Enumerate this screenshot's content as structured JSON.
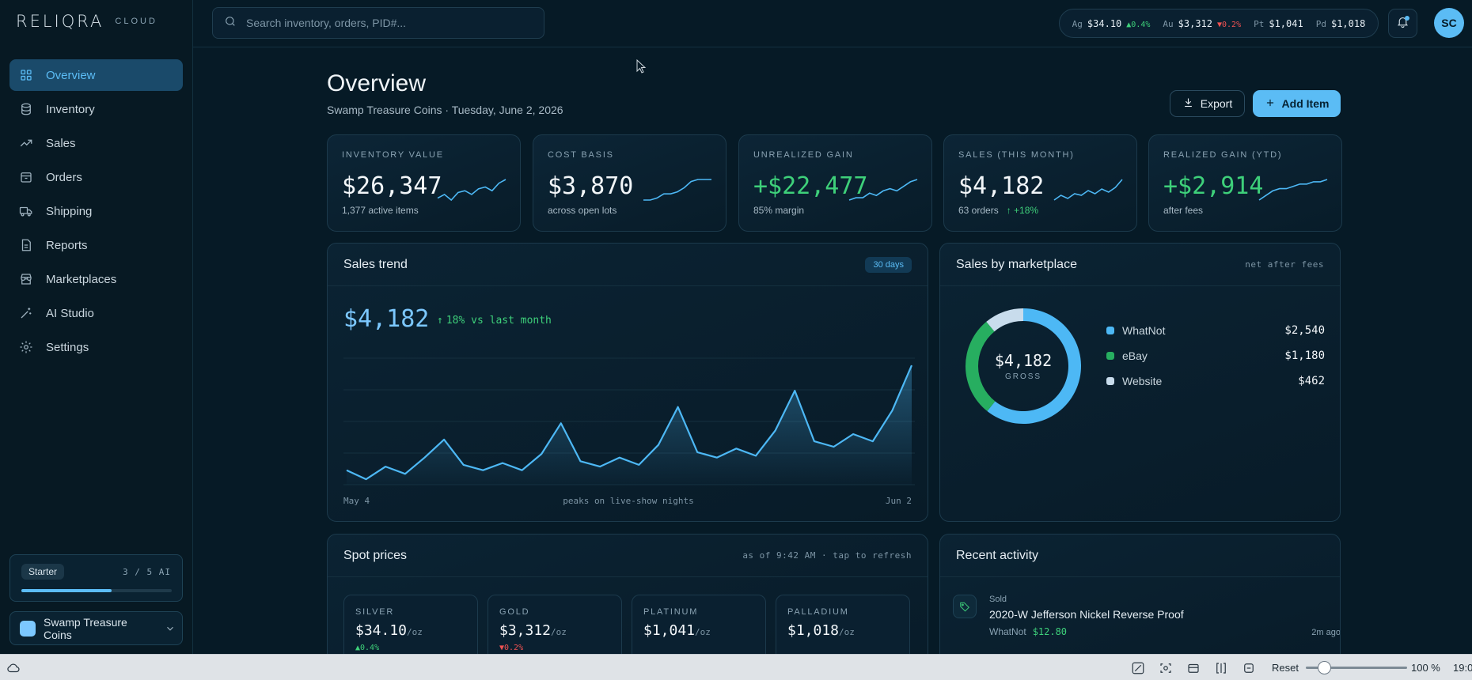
{
  "brand": {
    "logo": "RELIQRA",
    "sub": "CLOUD"
  },
  "sidebar": {
    "items": [
      {
        "label": "Overview",
        "icon": "grid-icon",
        "active": true
      },
      {
        "label": "Inventory",
        "icon": "database-icon"
      },
      {
        "label": "Sales",
        "icon": "trending-up-icon"
      },
      {
        "label": "Orders",
        "icon": "box-icon"
      },
      {
        "label": "Shipping",
        "icon": "truck-icon"
      },
      {
        "label": "Reports",
        "icon": "report-icon"
      },
      {
        "label": "Marketplaces",
        "icon": "store-icon"
      },
      {
        "label": "AI Studio",
        "icon": "wand-icon"
      },
      {
        "label": "Settings",
        "icon": "gear-icon"
      }
    ],
    "plan": {
      "name": "Starter",
      "usage": "3 / 5 AI",
      "progress": 0.6
    },
    "workspace": "Swamp Treasure Coins"
  },
  "topbar": {
    "search_placeholder": "Search inventory, orders, PID#...",
    "ticker": [
      {
        "sym": "Ag",
        "price": "$34.10",
        "change": "▲0.4%",
        "dir": "up"
      },
      {
        "sym": "Au",
        "price": "$3,312",
        "change": "▼0.2%",
        "dir": "down"
      },
      {
        "sym": "Pt",
        "price": "$1,041",
        "change": "",
        "dir": ""
      },
      {
        "sym": "Pd",
        "price": "$1,018",
        "change": "",
        "dir": ""
      }
    ],
    "avatar": "SC"
  },
  "header": {
    "title": "Overview",
    "subtitle": "Swamp Treasure Coins · Tuesday, June 2, 2026",
    "export_label": "Export",
    "add_label": "Add Item"
  },
  "kpis": [
    {
      "label": "INVENTORY VALUE",
      "value": "$26,347",
      "foot": "1,377 active items",
      "delta": "",
      "green": false,
      "spark": [
        10,
        12,
        9,
        13,
        14,
        12,
        15,
        16,
        14,
        18,
        20
      ]
    },
    {
      "label": "COST BASIS",
      "value": "$3,870",
      "foot": "across open lots",
      "delta": "",
      "green": false,
      "spark": [
        8,
        8,
        9,
        11,
        11,
        12,
        14,
        17,
        18,
        18,
        18
      ]
    },
    {
      "label": "UNREALIZED GAIN",
      "value": "+$22,477",
      "foot": "85% margin",
      "delta": "",
      "green": true,
      "spark": [
        9,
        10,
        10,
        12,
        11,
        13,
        14,
        13,
        15,
        17,
        18
      ]
    },
    {
      "label": "SALES (THIS MONTH)",
      "value": "$4,182",
      "foot": "63 orders",
      "delta": "+18%",
      "green": false,
      "spark": [
        9,
        12,
        10,
        13,
        12,
        15,
        13,
        16,
        14,
        17,
        22
      ]
    },
    {
      "label": "REALIZED GAIN (YTD)",
      "value": "+$2,914",
      "foot": "after fees",
      "delta": "",
      "green": true,
      "spark": [
        8,
        10,
        12,
        13,
        13,
        14,
        15,
        15,
        16,
        16,
        17
      ]
    }
  ],
  "sales_trend": {
    "title": "Sales trend",
    "range": "30 days",
    "value": "$4,182",
    "delta": "18% vs last month",
    "start_label": "May 4",
    "mid_label": "peaks on live-show nights",
    "end_label": "Jun 2"
  },
  "marketplace": {
    "title": "Sales by marketplace",
    "meta": "net after fees",
    "center_value": "$4,182",
    "center_label": "GROSS",
    "items": [
      {
        "name": "WhatNot",
        "value": "$2,540",
        "amount": 2540,
        "color": "#4db8f5"
      },
      {
        "name": "eBay",
        "value": "$1,180",
        "amount": 1180,
        "color": "#27ae60"
      },
      {
        "name": "Website",
        "value": "$462",
        "amount": 462,
        "color": "#c8dcec"
      }
    ]
  },
  "spot": {
    "title": "Spot prices",
    "meta": "as of 9:42 AM · tap to refresh",
    "items": [
      {
        "name": "SILVER",
        "price": "$34.10",
        "unit": "/oz",
        "change": "▲0.4%",
        "dir": "up"
      },
      {
        "name": "GOLD",
        "price": "$3,312",
        "unit": "/oz",
        "change": "▼0.2%",
        "dir": "down"
      },
      {
        "name": "PLATINUM",
        "price": "$1,041",
        "unit": "/oz",
        "change": "",
        "dir": ""
      },
      {
        "name": "PALLADIUM",
        "price": "$1,018",
        "unit": "/oz",
        "change": "",
        "dir": ""
      }
    ]
  },
  "activity": {
    "title": "Recent activity",
    "items": [
      {
        "type": "Sold",
        "title": "2020-W Jefferson Nickel Reverse Proof",
        "channel": "WhatNot",
        "amount": "$12.80",
        "time": "2m ago",
        "icon": "tag-icon"
      }
    ]
  },
  "chart_data": {
    "type": "area",
    "title": "Sales trend",
    "xlabel": "",
    "ylabel": "",
    "x_start": "May 4",
    "x_end": "Jun 2",
    "series": [
      {
        "values": [
          8,
          3,
          10,
          6,
          15,
          25,
          11,
          8,
          12,
          8,
          17,
          34,
          13,
          10,
          15,
          11,
          22,
          43,
          18,
          15,
          20,
          16,
          30,
          52,
          24,
          21,
          28,
          24,
          41,
          66
        ]
      }
    ],
    "ylim": [
      0,
      70
    ],
    "grid": true,
    "color": "#4db8f5"
  },
  "taskbar": {
    "reset": "Reset",
    "zoom": "100 %",
    "clock": "19:0",
    "zoom_level": 0.18
  }
}
